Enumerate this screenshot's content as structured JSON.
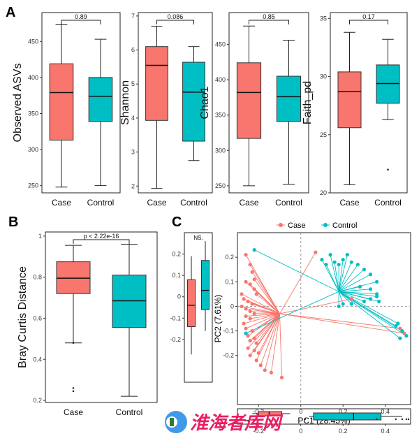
{
  "panel_labels": {
    "A": "A",
    "B": "B",
    "C": "C"
  },
  "colors": {
    "case": "#F8766D",
    "control": "#00BFC4"
  },
  "watermark": "淮海者库网",
  "chart_data": [
    {
      "id": "asv",
      "type": "box",
      "ylabel": "Observed ASVs",
      "pvalue": "0.89",
      "ylim": [
        240,
        490
      ],
      "yticks": [
        250,
        300,
        350,
        400,
        450
      ],
      "categories": [
        "Case",
        "Control"
      ],
      "boxes": [
        {
          "min": 248,
          "q1": 313,
          "median": 379,
          "q3": 419,
          "max": 473,
          "outliers": []
        },
        {
          "min": 250,
          "q1": 339,
          "median": 374,
          "q3": 400,
          "max": 453,
          "outliers": []
        }
      ]
    },
    {
      "id": "shannon",
      "type": "box",
      "ylabel": "Shannon",
      "pvalue": "0.086",
      "ylim": [
        1.8,
        7.1
      ],
      "yticks": [
        2,
        3,
        4,
        5,
        6,
        7
      ],
      "categories": [
        "Case",
        "Control"
      ],
      "boxes": [
        {
          "min": 1.93,
          "q1": 3.93,
          "median": 5.55,
          "q3": 6.1,
          "max": 6.7,
          "outliers": []
        },
        {
          "min": 2.75,
          "q1": 3.32,
          "median": 4.76,
          "q3": 5.64,
          "max": 6.1,
          "outliers": []
        }
      ]
    },
    {
      "id": "chao",
      "type": "box",
      "ylabel": "Chao1",
      "pvalue": "0.85",
      "ylim": [
        240,
        495
      ],
      "yticks": [
        250,
        300,
        350,
        400,
        450
      ],
      "categories": [
        "Case",
        "Control"
      ],
      "boxes": [
        {
          "min": 250,
          "q1": 317,
          "median": 382,
          "q3": 424,
          "max": 476,
          "outliers": []
        },
        {
          "min": 252,
          "q1": 341,
          "median": 376,
          "q3": 405,
          "max": 456,
          "outliers": []
        }
      ]
    },
    {
      "id": "faith",
      "type": "box",
      "ylabel": "Faith_pd",
      "pvalue": "0.17",
      "ylim": [
        20,
        35.5
      ],
      "yticks": [
        20,
        25,
        30,
        35
      ],
      "categories": [
        "Case",
        "Control"
      ],
      "boxes": [
        {
          "min": 20.7,
          "q1": 25.6,
          "median": 28.7,
          "q3": 30.4,
          "max": 33.8,
          "outliers": []
        },
        {
          "min": 26.3,
          "q1": 27.7,
          "median": 29.4,
          "q3": 31.0,
          "max": 33.2,
          "outliers": [
            22.0
          ]
        }
      ]
    },
    {
      "id": "bray",
      "type": "box",
      "ylabel": "Bray Curtis Distance",
      "pvalue": "p < 2.22e-16",
      "ylim": [
        0.19,
        1.02
      ],
      "yticks": [
        0.2,
        0.4,
        0.6,
        0.8,
        1.0
      ],
      "categories": [
        "Case",
        "Control"
      ],
      "boxes": [
        {
          "min": 0.48,
          "q1": 0.72,
          "median": 0.795,
          "q3": 0.875,
          "max": 0.955,
          "outliers": [
            0.48,
            0.26,
            0.245
          ]
        },
        {
          "min": 0.22,
          "q1": 0.555,
          "median": 0.685,
          "q3": 0.81,
          "max": 0.96,
          "outliers": []
        }
      ]
    },
    {
      "id": "pcoa",
      "type": "scatter",
      "xlabel": "PC1 (28.45%)",
      "ylabel": "PC2 (7.61%)",
      "xlim": [
        -0.3,
        0.52
      ],
      "ylim": [
        -0.4,
        0.3
      ],
      "xticks": [
        -0.2,
        0.0,
        0.2,
        0.4
      ],
      "yticks": [
        -0.2,
        -0.1,
        0.0,
        0.1,
        0.2
      ],
      "legend": [
        "Case",
        "Control"
      ],
      "centroids": {
        "case": [
          -0.1,
          -0.03
        ],
        "control": [
          0.18,
          0.06
        ]
      },
      "case_points": [
        [
          -0.26,
          0.21
        ],
        [
          -0.24,
          0.17
        ],
        [
          -0.23,
          0.14
        ],
        [
          -0.22,
          0.11
        ],
        [
          -0.26,
          0.1
        ],
        [
          -0.24,
          0.09
        ],
        [
          -0.22,
          0.07
        ],
        [
          -0.21,
          0.05
        ],
        [
          -0.28,
          0.05
        ],
        [
          -0.27,
          0.03
        ],
        [
          -0.25,
          0.02
        ],
        [
          -0.23,
          0.01
        ],
        [
          -0.28,
          0.0
        ],
        [
          -0.26,
          -0.01
        ],
        [
          -0.24,
          -0.02
        ],
        [
          -0.22,
          -0.03
        ],
        [
          -0.26,
          -0.04
        ],
        [
          -0.24,
          -0.05
        ],
        [
          -0.27,
          -0.07
        ],
        [
          -0.26,
          -0.09
        ],
        [
          -0.23,
          -0.1
        ],
        [
          -0.25,
          -0.12
        ],
        [
          -0.22,
          -0.13
        ],
        [
          -0.24,
          -0.14
        ],
        [
          -0.21,
          -0.15
        ],
        [
          -0.25,
          -0.17
        ],
        [
          -0.22,
          -0.18
        ],
        [
          -0.2,
          -0.19
        ],
        [
          -0.24,
          -0.2
        ],
        [
          -0.21,
          -0.22
        ],
        [
          -0.19,
          -0.24
        ],
        [
          -0.17,
          -0.26
        ],
        [
          -0.14,
          -0.27
        ],
        [
          -0.09,
          -0.29
        ],
        [
          0.07,
          0.22
        ],
        [
          0.47,
          -0.09
        ],
        [
          0.49,
          -0.11
        ],
        [
          0.24,
          0.03
        ]
      ],
      "control_points": [
        [
          -0.22,
          0.23
        ],
        [
          -0.26,
          -0.11
        ],
        [
          0.1,
          0.19
        ],
        [
          0.12,
          0.17
        ],
        [
          0.14,
          0.21
        ],
        [
          0.16,
          0.18
        ],
        [
          0.18,
          0.17
        ],
        [
          0.2,
          0.19
        ],
        [
          0.22,
          0.21
        ],
        [
          0.24,
          0.18
        ],
        [
          0.27,
          0.17
        ],
        [
          0.3,
          0.15
        ],
        [
          0.33,
          0.13
        ],
        [
          0.36,
          0.1
        ],
        [
          0.36,
          0.05
        ],
        [
          0.33,
          0.03
        ],
        [
          0.3,
          0.02
        ],
        [
          0.24,
          0.01
        ],
        [
          0.2,
          0.01
        ],
        [
          0.18,
          0.0
        ],
        [
          0.36,
          0.04
        ],
        [
          0.37,
          0.02
        ],
        [
          0.28,
          0.08
        ],
        [
          0.33,
          0.07
        ],
        [
          0.46,
          -0.07
        ],
        [
          0.48,
          -0.1
        ],
        [
          0.5,
          -0.12
        ],
        [
          0.47,
          -0.13
        ],
        [
          0.45,
          -0.08
        ]
      ],
      "top_box": {
        "label": "NS.",
        "ylim": [
          -0.4,
          0.3
        ],
        "boxes": [
          {
            "min": -0.27,
            "q1": -0.14,
            "median": -0.04,
            "q3": 0.08,
            "max": 0.19
          },
          {
            "min": -0.16,
            "q1": -0.06,
            "median": 0.03,
            "q3": 0.17,
            "max": 0.26
          }
        ]
      },
      "bottom_box": {
        "boxes": [
          {
            "min": -0.23,
            "q1": -0.2,
            "median": -0.15,
            "q3": -0.09,
            "max": -0.05,
            "outliers": [
              -0.26,
              -0.25
            ]
          },
          {
            "min": 0.04,
            "q1": 0.06,
            "median": 0.25,
            "q3": 0.38,
            "max": 0.48,
            "outliers": [
              0.02,
              0.36,
              0.45,
              0.48,
              0.5,
              0.51
            ]
          }
        ]
      }
    }
  ]
}
